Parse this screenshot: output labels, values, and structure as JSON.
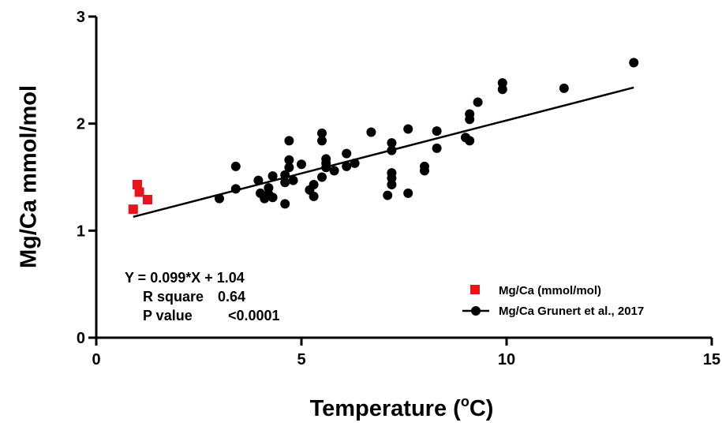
{
  "chart_data": {
    "type": "scatter",
    "xlabel": "Temperature (",
    "xlabel_degree": "o",
    "xlabel_unit": "C)",
    "ylabel": "Mg/Ca mmol/mol",
    "xlim": [
      0,
      15
    ],
    "ylim": [
      0,
      3
    ],
    "x_ticks": [
      "0",
      "5",
      "10",
      "15"
    ],
    "y_ticks": [
      "0",
      "1",
      "2",
      "3"
    ],
    "grid": false,
    "legend_position": "bottom-right",
    "annotation": {
      "equation": "Y = 0.099*X + 1.04",
      "r_square_label": "R square",
      "r_square_value": "0.64",
      "p_value_label": "P value",
      "p_value_value": "<0.0001"
    },
    "fit_line": {
      "slope": 0.099,
      "intercept": 1.04,
      "x_range": [
        0.9,
        13.1
      ]
    },
    "series": [
      {
        "name": "Mg/Ca (mmol/mol)",
        "marker": "square",
        "color": "#e8131b",
        "points": [
          [
            0.9,
            1.2
          ],
          [
            1.0,
            1.43
          ],
          [
            1.05,
            1.36
          ],
          [
            1.25,
            1.29
          ]
        ]
      },
      {
        "name": "Mg/Ca Grunert et al., 2017",
        "marker": "circle",
        "color": "#000000",
        "points": [
          [
            3.0,
            1.3
          ],
          [
            3.4,
            1.6
          ],
          [
            3.4,
            1.39
          ],
          [
            3.95,
            1.47
          ],
          [
            4.0,
            1.35
          ],
          [
            4.1,
            1.3
          ],
          [
            4.2,
            1.34
          ],
          [
            4.2,
            1.4
          ],
          [
            4.3,
            1.51
          ],
          [
            4.3,
            1.31
          ],
          [
            4.6,
            1.45
          ],
          [
            4.6,
            1.52
          ],
          [
            4.6,
            1.25
          ],
          [
            4.7,
            1.84
          ],
          [
            4.7,
            1.66
          ],
          [
            4.7,
            1.59
          ],
          [
            4.8,
            1.47
          ],
          [
            5.0,
            1.62
          ],
          [
            5.2,
            1.38
          ],
          [
            5.3,
            1.43
          ],
          [
            5.3,
            1.32
          ],
          [
            5.5,
            1.91
          ],
          [
            5.5,
            1.84
          ],
          [
            5.5,
            1.5
          ],
          [
            5.6,
            1.67
          ],
          [
            5.6,
            1.63
          ],
          [
            5.6,
            1.59
          ],
          [
            5.8,
            1.56
          ],
          [
            6.1,
            1.72
          ],
          [
            6.1,
            1.6
          ],
          [
            6.3,
            1.63
          ],
          [
            6.7,
            1.92
          ],
          [
            7.1,
            1.33
          ],
          [
            7.2,
            1.82
          ],
          [
            7.2,
            1.75
          ],
          [
            7.2,
            1.54
          ],
          [
            7.2,
            1.49
          ],
          [
            7.2,
            1.43
          ],
          [
            7.6,
            1.95
          ],
          [
            7.6,
            1.35
          ],
          [
            8.0,
            1.6
          ],
          [
            8.0,
            1.56
          ],
          [
            8.3,
            1.93
          ],
          [
            8.3,
            1.77
          ],
          [
            9.0,
            1.87
          ],
          [
            9.1,
            2.09
          ],
          [
            9.1,
            2.04
          ],
          [
            9.1,
            1.84
          ],
          [
            9.3,
            2.2
          ],
          [
            9.9,
            2.38
          ],
          [
            9.9,
            2.32
          ],
          [
            11.4,
            2.33
          ],
          [
            13.1,
            2.57
          ]
        ]
      }
    ]
  }
}
